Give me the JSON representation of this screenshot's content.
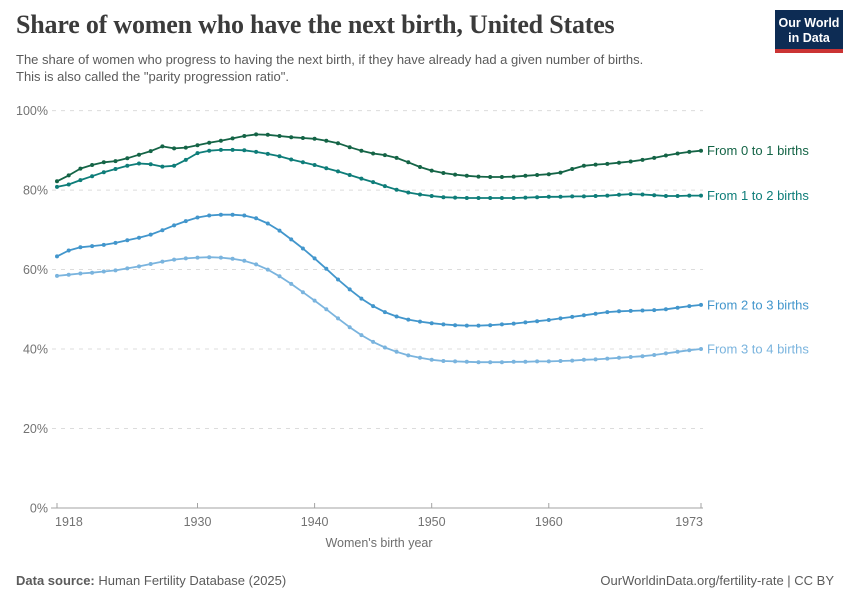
{
  "header": {
    "title": "Share of women who have the next birth, United States",
    "subtitle_line1": "The share of women who progress to having the next birth, if they have already had a given number of births.",
    "subtitle_line2": "This is also called the \"parity progression ratio\".",
    "logo": {
      "line1": "Our World",
      "line2": "in Data",
      "bg_color": "#0d2c54",
      "bar_color": "#cb3434"
    }
  },
  "footer": {
    "datasource_label": "Data source:",
    "datasource_value": " Human Fertility Database (2025)",
    "link_text": "OurWorldinData.org/fertility-rate | CC BY"
  },
  "chart_data": {
    "type": "line",
    "title": "Share of women who have the next birth, United States",
    "xlabel": "Women's birth year",
    "ylabel": "",
    "xlim": [
      1918,
      1973
    ],
    "ylim": [
      0,
      100
    ],
    "grid": "horizontal-dashed",
    "legend_position": "right-end-of-lines",
    "x_ticks": [
      {
        "value": 1918,
        "label": "1918"
      },
      {
        "value": 1930,
        "label": "1930"
      },
      {
        "value": 1940,
        "label": "1940"
      },
      {
        "value": 1950,
        "label": "1950"
      },
      {
        "value": 1960,
        "label": "1960"
      },
      {
        "value": 1973,
        "label": "1973"
      }
    ],
    "y_ticks": [
      {
        "value": 0,
        "label": "0%"
      },
      {
        "value": 20,
        "label": "20%"
      },
      {
        "value": 40,
        "label": "40%"
      },
      {
        "value": 60,
        "label": "60%"
      },
      {
        "value": 80,
        "label": "80%"
      },
      {
        "value": 100,
        "label": "100%"
      }
    ],
    "x": [
      1918,
      1919,
      1920,
      1921,
      1922,
      1923,
      1924,
      1925,
      1926,
      1927,
      1928,
      1929,
      1930,
      1931,
      1932,
      1933,
      1934,
      1935,
      1936,
      1937,
      1938,
      1939,
      1940,
      1941,
      1942,
      1943,
      1944,
      1945,
      1946,
      1947,
      1948,
      1949,
      1950,
      1951,
      1952,
      1953,
      1954,
      1955,
      1956,
      1957,
      1958,
      1959,
      1960,
      1961,
      1962,
      1963,
      1964,
      1965,
      1966,
      1967,
      1968,
      1969,
      1970,
      1971,
      1972,
      1973
    ],
    "series": [
      {
        "name": "From 0 to 1 births",
        "color": "#146446",
        "values": [
          82.2,
          83.7,
          85.4,
          86.3,
          87.0,
          87.3,
          88.0,
          88.9,
          89.8,
          91.0,
          90.5,
          90.7,
          91.3,
          91.9,
          92.4,
          93.0,
          93.6,
          94.0,
          93.9,
          93.6,
          93.3,
          93.1,
          92.9,
          92.4,
          91.8,
          90.8,
          89.9,
          89.2,
          88.8,
          88.1,
          87.0,
          85.8,
          84.9,
          84.3,
          83.9,
          83.6,
          83.4,
          83.3,
          83.3,
          83.4,
          83.6,
          83.8,
          84.0,
          84.4,
          85.3,
          86.1,
          86.4,
          86.6,
          86.9,
          87.2,
          87.6,
          88.1,
          88.7,
          89.2,
          89.6,
          89.9
        ]
      },
      {
        "name": "From 1 to 2 births",
        "color": "#0e7d79",
        "values": [
          80.8,
          81.4,
          82.5,
          83.5,
          84.5,
          85.3,
          86.1,
          86.7,
          86.5,
          85.9,
          86.1,
          87.6,
          89.3,
          89.9,
          90.1,
          90.1,
          90.0,
          89.6,
          89.1,
          88.5,
          87.7,
          87.0,
          86.3,
          85.5,
          84.7,
          83.8,
          82.9,
          82.0,
          81.0,
          80.1,
          79.4,
          78.9,
          78.5,
          78.2,
          78.1,
          78.0,
          78.0,
          78.0,
          78.0,
          78.0,
          78.1,
          78.2,
          78.3,
          78.3,
          78.4,
          78.4,
          78.5,
          78.6,
          78.8,
          79.0,
          78.9,
          78.7,
          78.5,
          78.5,
          78.6,
          78.6
        ]
      },
      {
        "name": "From 2 to 3 births",
        "color": "#4296cc",
        "values": [
          63.3,
          64.8,
          65.6,
          65.9,
          66.2,
          66.7,
          67.4,
          68.0,
          68.8,
          69.9,
          71.1,
          72.2,
          73.1,
          73.6,
          73.8,
          73.8,
          73.6,
          72.9,
          71.6,
          69.8,
          67.6,
          65.3,
          62.8,
          60.2,
          57.5,
          55.0,
          52.7,
          50.8,
          49.3,
          48.2,
          47.4,
          46.9,
          46.5,
          46.2,
          46.0,
          45.9,
          45.9,
          46.0,
          46.2,
          46.4,
          46.7,
          47.0,
          47.3,
          47.7,
          48.1,
          48.5,
          48.9,
          49.3,
          49.5,
          49.6,
          49.7,
          49.8,
          50.0,
          50.4,
          50.8,
          51.1
        ]
      },
      {
        "name": "From 3 to 4 births",
        "color": "#7ab4de",
        "values": [
          58.4,
          58.7,
          59.0,
          59.2,
          59.5,
          59.8,
          60.3,
          60.8,
          61.4,
          62.0,
          62.5,
          62.8,
          63.0,
          63.1,
          63.0,
          62.7,
          62.2,
          61.3,
          60.0,
          58.3,
          56.4,
          54.3,
          52.2,
          50.0,
          47.7,
          45.5,
          43.5,
          41.8,
          40.4,
          39.3,
          38.4,
          37.8,
          37.3,
          37.0,
          36.9,
          36.8,
          36.7,
          36.7,
          36.7,
          36.8,
          36.8,
          36.9,
          36.9,
          37.0,
          37.1,
          37.3,
          37.4,
          37.6,
          37.8,
          38.0,
          38.2,
          38.5,
          38.9,
          39.3,
          39.7,
          40.0
        ]
      }
    ]
  }
}
